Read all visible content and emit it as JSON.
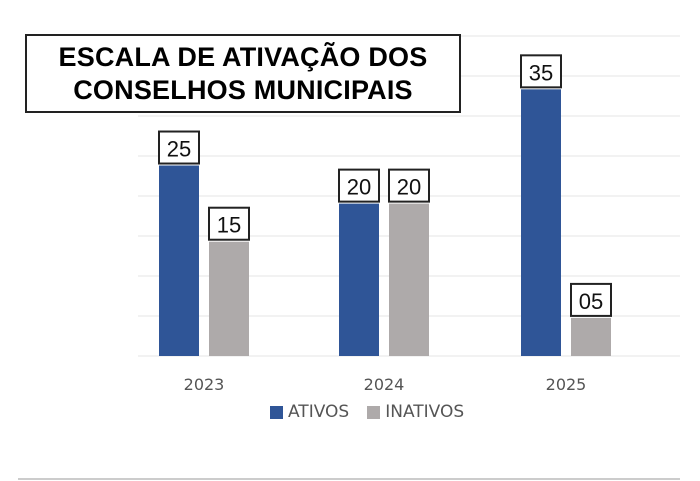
{
  "chart_data": {
    "type": "bar",
    "title": [
      "ESCALA DE ATIVAÇÃO DOS",
      "CONSELHOS MUNICIPAIS"
    ],
    "categories": [
      "2023",
      "2024",
      "2025"
    ],
    "series": [
      {
        "name": "ATIVOS",
        "values": [
          25,
          20,
          35
        ],
        "labels": [
          "25",
          "20",
          "35"
        ],
        "color": "#2F5597"
      },
      {
        "name": "INATIVOS",
        "values": [
          15,
          20,
          5
        ],
        "labels": [
          "15",
          "20",
          "05"
        ],
        "color": "#AEAAAA"
      }
    ],
    "ylim": [
      0,
      42
    ],
    "grid": true,
    "legend": "bottom",
    "xlabel": "",
    "ylabel": ""
  }
}
